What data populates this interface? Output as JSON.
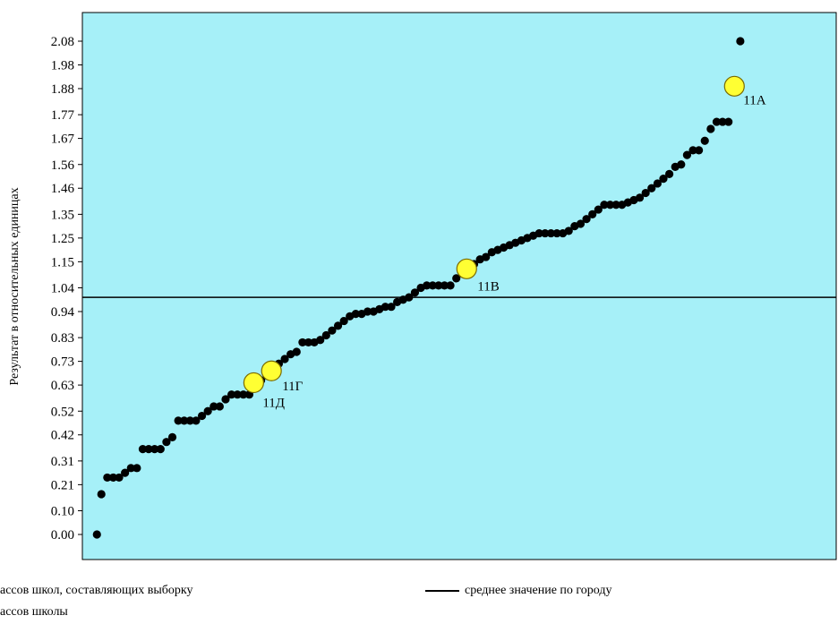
{
  "colors": {
    "plot_background": "#a6f0f8",
    "points": "#000000",
    "highlight_fill": "#ffff33",
    "highlight_stroke": "#7a6a00",
    "mean_line": "#000000"
  },
  "legend": {
    "sample_label": "ассов школ, составляющих выборку",
    "school_label": "ассов школы",
    "mean_label": "среднее значение по городу"
  },
  "chart_data": {
    "type": "scatter",
    "ylabel": "Результат в относительных единицах",
    "xlabel": "",
    "yticks": [
      "2.08",
      "1.98",
      "1.88",
      "1.77",
      "1.67",
      "1.56",
      "1.46",
      "1.35",
      "1.25",
      "1.15",
      "1.04",
      "0.94",
      "0.83",
      "0.73",
      "0.63",
      "0.52",
      "0.42",
      "0.31",
      "0.21",
      "0.10",
      "0.00"
    ],
    "ylim": [
      -0.1,
      2.2
    ],
    "xlim": [
      0,
      1
    ],
    "mean_value": 1.0,
    "grid": false,
    "series": [
      {
        "points": [
          [
            0.01,
            0.0
          ],
          [
            0.016,
            0.17
          ],
          [
            0.024,
            0.24
          ],
          [
            0.032,
            0.24
          ],
          [
            0.04,
            0.24
          ],
          [
            0.048,
            0.26
          ],
          [
            0.056,
            0.28
          ],
          [
            0.064,
            0.28
          ],
          [
            0.072,
            0.36
          ],
          [
            0.08,
            0.36
          ],
          [
            0.088,
            0.36
          ],
          [
            0.096,
            0.36
          ],
          [
            0.104,
            0.39
          ],
          [
            0.112,
            0.41
          ],
          [
            0.12,
            0.48
          ],
          [
            0.128,
            0.48
          ],
          [
            0.136,
            0.48
          ],
          [
            0.144,
            0.48
          ],
          [
            0.152,
            0.5
          ],
          [
            0.16,
            0.52
          ],
          [
            0.168,
            0.54
          ],
          [
            0.176,
            0.54
          ],
          [
            0.184,
            0.57
          ],
          [
            0.192,
            0.59
          ],
          [
            0.2,
            0.59
          ],
          [
            0.208,
            0.59
          ],
          [
            0.216,
            0.59
          ],
          [
            0.224,
            0.62
          ],
          [
            0.232,
            0.65
          ],
          [
            0.24,
            0.67
          ],
          [
            0.248,
            0.7
          ],
          [
            0.256,
            0.72
          ],
          [
            0.264,
            0.74
          ],
          [
            0.272,
            0.76
          ],
          [
            0.28,
            0.77
          ],
          [
            0.288,
            0.81
          ],
          [
            0.296,
            0.81
          ],
          [
            0.304,
            0.81
          ],
          [
            0.312,
            0.82
          ],
          [
            0.32,
            0.84
          ],
          [
            0.328,
            0.86
          ],
          [
            0.336,
            0.88
          ],
          [
            0.344,
            0.9
          ],
          [
            0.352,
            0.92
          ],
          [
            0.36,
            0.93
          ],
          [
            0.368,
            0.93
          ],
          [
            0.376,
            0.94
          ],
          [
            0.384,
            0.94
          ],
          [
            0.392,
            0.95
          ],
          [
            0.4,
            0.96
          ],
          [
            0.408,
            0.96
          ],
          [
            0.416,
            0.98
          ],
          [
            0.424,
            0.99
          ],
          [
            0.432,
            1.0
          ],
          [
            0.44,
            1.02
          ],
          [
            0.448,
            1.04
          ],
          [
            0.456,
            1.05
          ],
          [
            0.464,
            1.05
          ],
          [
            0.472,
            1.05
          ],
          [
            0.48,
            1.05
          ],
          [
            0.488,
            1.05
          ],
          [
            0.496,
            1.08
          ],
          [
            0.504,
            1.1
          ],
          [
            0.512,
            1.12
          ],
          [
            0.52,
            1.14
          ],
          [
            0.528,
            1.16
          ],
          [
            0.536,
            1.17
          ],
          [
            0.544,
            1.19
          ],
          [
            0.552,
            1.2
          ],
          [
            0.56,
            1.21
          ],
          [
            0.568,
            1.22
          ],
          [
            0.576,
            1.23
          ],
          [
            0.584,
            1.24
          ],
          [
            0.592,
            1.25
          ],
          [
            0.6,
            1.26
          ],
          [
            0.608,
            1.27
          ],
          [
            0.616,
            1.27
          ],
          [
            0.624,
            1.27
          ],
          [
            0.632,
            1.27
          ],
          [
            0.64,
            1.27
          ],
          [
            0.648,
            1.28
          ],
          [
            0.656,
            1.3
          ],
          [
            0.664,
            1.31
          ],
          [
            0.672,
            1.33
          ],
          [
            0.68,
            1.35
          ],
          [
            0.688,
            1.37
          ],
          [
            0.696,
            1.39
          ],
          [
            0.704,
            1.39
          ],
          [
            0.712,
            1.39
          ],
          [
            0.72,
            1.39
          ],
          [
            0.728,
            1.4
          ],
          [
            0.736,
            1.41
          ],
          [
            0.744,
            1.42
          ],
          [
            0.752,
            1.44
          ],
          [
            0.76,
            1.46
          ],
          [
            0.768,
            1.48
          ],
          [
            0.776,
            1.5
          ],
          [
            0.784,
            1.52
          ],
          [
            0.792,
            1.55
          ],
          [
            0.8,
            1.56
          ],
          [
            0.808,
            1.6
          ],
          [
            0.816,
            1.62
          ],
          [
            0.824,
            1.62
          ],
          [
            0.832,
            1.66
          ],
          [
            0.84,
            1.71
          ],
          [
            0.848,
            1.74
          ],
          [
            0.856,
            1.74
          ],
          [
            0.864,
            1.74
          ],
          [
            0.872,
            1.88
          ],
          [
            0.88,
            2.08
          ]
        ]
      }
    ],
    "highlighted": [
      {
        "label": "11А",
        "x": 0.872,
        "y": 1.89
      },
      {
        "label": "11В",
        "x": 0.51,
        "y": 1.12
      },
      {
        "label": "11Г",
        "x": 0.246,
        "y": 0.69
      },
      {
        "label": "11Д",
        "x": 0.222,
        "y": 0.64
      }
    ]
  }
}
